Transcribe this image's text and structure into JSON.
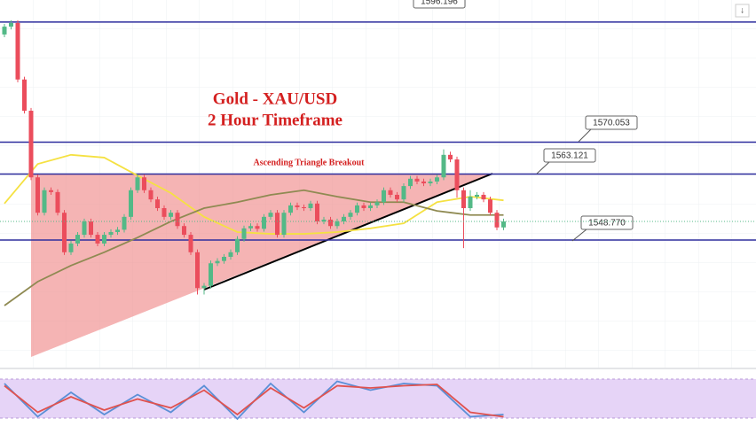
{
  "chart_data": {
    "type": "candlestick",
    "title": "Gold - XAU/USD",
    "subtitle": "2 Hour Timeframe",
    "annotations": [
      "Ascending Triangle Breakout"
    ],
    "ylim": [
      1521,
      1601
    ],
    "up_color": "#53b987",
    "down_color": "#eb4d5c",
    "open": [
      1593.5,
      1595.2,
      1596.0,
      1583.7,
      1576.9,
      1562.4,
      1554.7,
      1559.6,
      1559.2,
      1554.7,
      1546.1,
      1548.0,
      1549.9,
      1552.8,
      1549.9,
      1548.0,
      1549.9,
      1550.5,
      1551.0,
      1553.8,
      1559.6,
      1562.4,
      1559.6,
      1557.6,
      1555.7,
      1553.8,
      1554.7,
      1551.8,
      1549.9,
      1546.1,
      1538.3,
      1538.8,
      1543.7,
      1544.2,
      1545.1,
      1546.1,
      1549.0,
      1551.3,
      1551.8,
      1551.2,
      1553.8,
      1554.7,
      1549.9,
      1554.7,
      1556.3,
      1555.9,
      1555.7,
      1556.7,
      1552.8,
      1553.2,
      1551.8,
      1552.8,
      1553.8,
      1554.7,
      1556.3,
      1555.7,
      1556.3,
      1557.0,
      1559.6,
      1558.6,
      1557.6,
      1560.5,
      1562.1,
      1561.5,
      1561.1,
      1561.5,
      1562.4,
      1567.3,
      1566.3,
      1559.6,
      1555.7,
      1558.2,
      1558.6,
      1557.6,
      1554.7,
      1551.5
    ],
    "high": [
      1595.8,
      1596.6,
      1596.6,
      1584.3,
      1577.5,
      1563.0,
      1560.2,
      1560.2,
      1559.8,
      1555.3,
      1548.6,
      1550.5,
      1553.4,
      1553.4,
      1550.5,
      1550.5,
      1551.1,
      1551.6,
      1554.4,
      1560.2,
      1563.0,
      1563.0,
      1560.2,
      1558.2,
      1556.3,
      1555.3,
      1555.3,
      1552.4,
      1550.5,
      1546.7,
      1539.4,
      1544.3,
      1544.8,
      1545.7,
      1546.7,
      1549.6,
      1551.9,
      1552.4,
      1552.4,
      1554.4,
      1555.3,
      1555.3,
      1555.3,
      1556.9,
      1556.9,
      1556.5,
      1557.3,
      1557.3,
      1553.8,
      1553.8,
      1553.4,
      1554.4,
      1555.3,
      1556.9,
      1556.9,
      1556.9,
      1557.6,
      1560.2,
      1560.2,
      1559.2,
      1561.1,
      1562.7,
      1562.7,
      1562.1,
      1562.1,
      1563.0,
      1568.5,
      1568.0,
      1566.9,
      1560.2,
      1559.6,
      1559.2,
      1559.2,
      1558.2,
      1555.3,
      1553.4
    ],
    "low": [
      1592.9,
      1594.6,
      1583.1,
      1576.3,
      1561.8,
      1554.1,
      1554.1,
      1558.6,
      1554.1,
      1545.5,
      1545.5,
      1547.4,
      1549.3,
      1549.3,
      1547.4,
      1547.4,
      1549.3,
      1549.9,
      1550.4,
      1553.2,
      1559.0,
      1559.0,
      1557.0,
      1555.1,
      1553.2,
      1553.2,
      1551.2,
      1549.3,
      1545.5,
      1536.9,
      1536.9,
      1538.2,
      1543.1,
      1543.6,
      1544.5,
      1545.5,
      1548.4,
      1550.7,
      1550.6,
      1550.6,
      1553.2,
      1549.3,
      1549.3,
      1554.1,
      1555.3,
      1555.1,
      1555.1,
      1552.2,
      1552.2,
      1551.2,
      1551.2,
      1552.2,
      1553.2,
      1554.1,
      1555.1,
      1555.1,
      1555.7,
      1556.4,
      1558.0,
      1557.0,
      1557.0,
      1559.9,
      1560.9,
      1560.5,
      1560.5,
      1560.9,
      1561.8,
      1565.7,
      1558.0,
      1547.0,
      1555.1,
      1557.6,
      1557.0,
      1554.1,
      1550.9,
      1550.9
    ],
    "close": [
      1595.2,
      1596.0,
      1583.7,
      1576.9,
      1562.4,
      1554.7,
      1559.6,
      1559.2,
      1554.7,
      1546.1,
      1548.0,
      1549.9,
      1552.8,
      1549.9,
      1548.0,
      1549.9,
      1550.5,
      1551.0,
      1553.8,
      1559.6,
      1562.4,
      1559.6,
      1557.6,
      1555.7,
      1553.8,
      1554.7,
      1551.8,
      1549.9,
      1546.1,
      1538.3,
      1538.8,
      1543.7,
      1544.2,
      1545.1,
      1546.1,
      1549.0,
      1551.3,
      1551.8,
      1551.2,
      1553.8,
      1554.7,
      1549.9,
      1554.7,
      1556.3,
      1555.9,
      1555.7,
      1556.7,
      1552.8,
      1553.2,
      1551.8,
      1552.8,
      1553.8,
      1554.7,
      1556.3,
      1555.7,
      1556.3,
      1557.0,
      1559.6,
      1558.6,
      1557.6,
      1560.5,
      1562.1,
      1561.5,
      1561.1,
      1561.5,
      1562.4,
      1567.3,
      1566.3,
      1559.6,
      1555.7,
      1558.2,
      1558.6,
      1557.6,
      1554.7,
      1551.5,
      1552.8
    ],
    "series": [
      {
        "color": "#f5e142",
        "x": [
          0,
          5,
          10,
          15,
          20,
          25,
          30,
          35,
          40,
          45,
          50,
          55,
          60,
          65,
          70,
          75
        ],
        "values": [
          1556.7,
          1565.3,
          1567.3,
          1566.7,
          1562.8,
          1559.0,
          1553.8,
          1550.5,
          1550.1,
          1550.1,
          1550.5,
          1551.3,
          1552.4,
          1557.0,
          1558.2,
          1557.4
        ]
      },
      {
        "color": "#8f8a52",
        "x": [
          0,
          5,
          10,
          15,
          20,
          25,
          30,
          35,
          40,
          45,
          50,
          55,
          60,
          65,
          70,
          75
        ],
        "values": [
          1534.5,
          1539.7,
          1543.2,
          1546.1,
          1549.3,
          1552.8,
          1555.7,
          1557.0,
          1558.6,
          1559.6,
          1558.2,
          1557.0,
          1557.0,
          1555.1,
          1554.2,
          1554.2
        ]
      }
    ],
    "levels": [
      1596.196,
      1570.053,
      1563.121,
      {
        "value": 1548.77,
        "label": "1548.770"
      }
    ],
    "level_color": "#2e2e9e",
    "oscillator": {
      "ylim": [
        0,
        100
      ],
      "series": [
        {
          "color": "#5b8fd6",
          "x": [
            0,
            5,
            10,
            15,
            20,
            25,
            30,
            35,
            40,
            45,
            50,
            55,
            60,
            65,
            70,
            75
          ],
          "values": [
            90,
            15,
            70,
            20,
            65,
            25,
            85,
            10,
            90,
            25,
            95,
            75,
            90,
            85,
            15,
            20
          ]
        },
        {
          "color": "#e0524f",
          "x": [
            0,
            5,
            10,
            15,
            20,
            25,
            30,
            35,
            40,
            45,
            50,
            55,
            60,
            65,
            70,
            75
          ],
          "values": [
            85,
            25,
            60,
            30,
            55,
            35,
            75,
            20,
            80,
            35,
            85,
            80,
            85,
            88,
            25,
            15
          ]
        }
      ]
    }
  }
}
